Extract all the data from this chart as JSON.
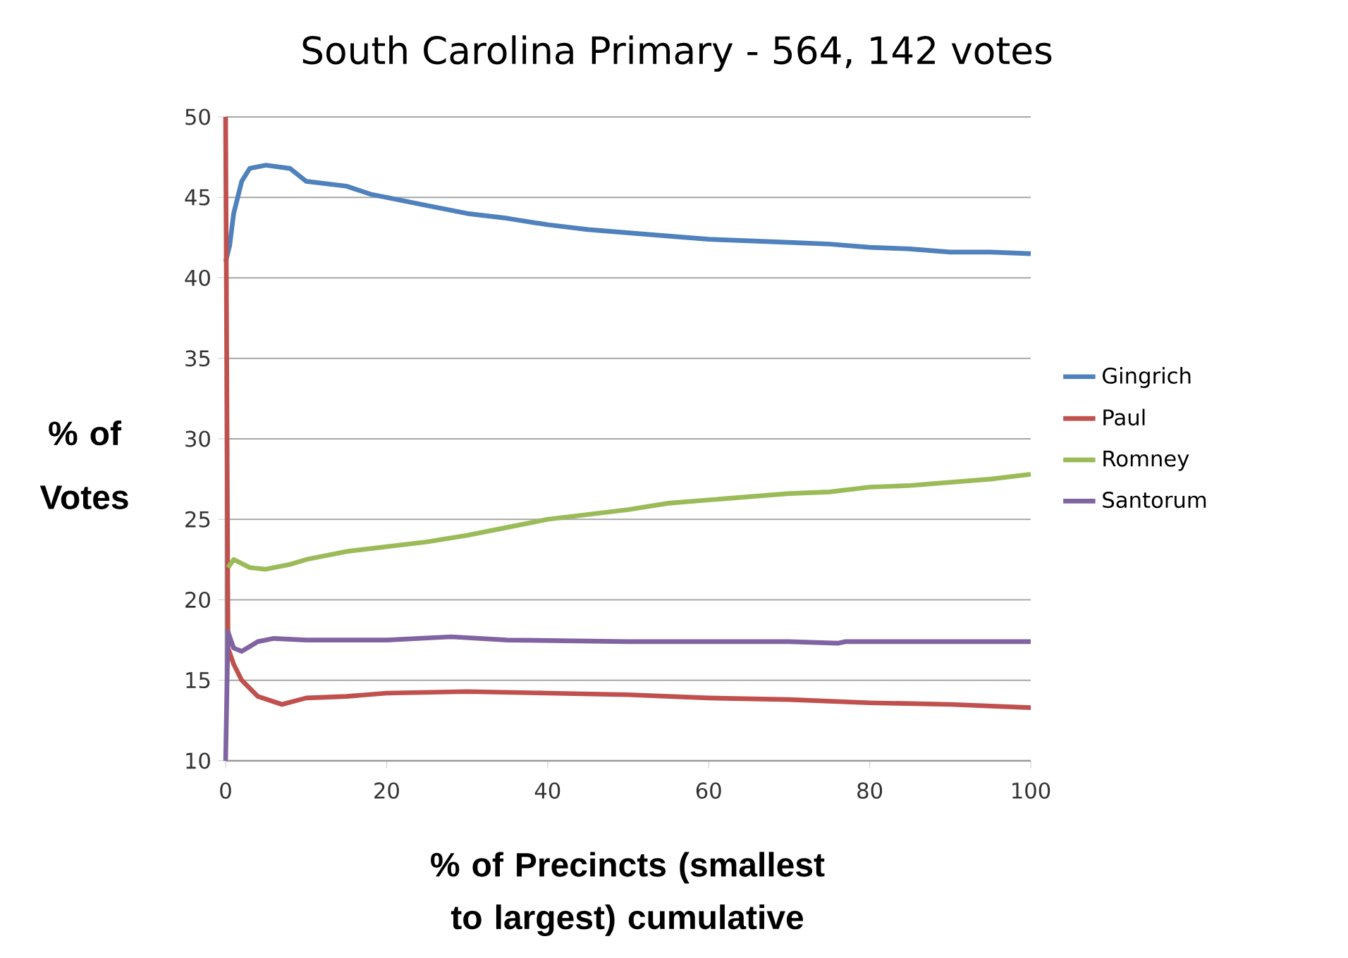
{
  "chart_data": {
    "type": "line",
    "title": "South Carolina Primary - 564, 142 votes",
    "xlabel": "% of Precincts (smallest to largest) cumulative",
    "ylabel": "% of Votes",
    "xlim": [
      0,
      100
    ],
    "ylim": [
      10,
      50
    ],
    "xticks": [
      0,
      20,
      40,
      60,
      80,
      100
    ],
    "yticks": [
      10,
      15,
      20,
      25,
      30,
      35,
      40,
      45,
      50
    ],
    "grid": "y",
    "legend": "right",
    "line_style": "solid",
    "marker": "none",
    "series": [
      {
        "name": "Gingrich",
        "color": "#4f81bd",
        "x": [
          0,
          0.5,
          1,
          2,
          3,
          5,
          8,
          10,
          15,
          18,
          20,
          25,
          30,
          35,
          40,
          45,
          50,
          55,
          60,
          65,
          70,
          75,
          80,
          85,
          90,
          95,
          100
        ],
        "values": [
          41,
          42,
          44,
          46,
          46.8,
          47,
          46.8,
          46,
          45.7,
          45.2,
          45,
          44.5,
          44,
          43.7,
          43.3,
          43,
          42.8,
          42.6,
          42.4,
          42.3,
          42.2,
          42.1,
          41.9,
          41.8,
          41.6,
          41.6,
          41.5
        ]
      },
      {
        "name": "Paul",
        "color": "#c0504d",
        "x": [
          0,
          0.3,
          1,
          2,
          4,
          7,
          10,
          15,
          20,
          30,
          40,
          50,
          60,
          70,
          80,
          90,
          100
        ],
        "values": [
          50,
          17,
          16,
          15,
          14,
          13.5,
          13.9,
          14,
          14.2,
          14.3,
          14.2,
          14.1,
          13.9,
          13.8,
          13.6,
          13.5,
          13.3
        ]
      },
      {
        "name": "Romney",
        "color": "#9bbb59",
        "x": [
          0.3,
          1,
          3,
          5,
          8,
          10,
          15,
          20,
          25,
          30,
          35,
          40,
          45,
          50,
          55,
          60,
          65,
          70,
          75,
          80,
          85,
          90,
          95,
          100
        ],
        "values": [
          22,
          22.5,
          22,
          21.9,
          22.2,
          22.5,
          23,
          23.3,
          23.6,
          24,
          24.5,
          25,
          25.3,
          25.6,
          26,
          26.2,
          26.4,
          26.6,
          26.7,
          27,
          27.1,
          27.3,
          27.5,
          27.8
        ]
      },
      {
        "name": "Santorum",
        "color": "#8064a2",
        "x": [
          0,
          0.3,
          1,
          2,
          4,
          6,
          10,
          20,
          28,
          35,
          50,
          60,
          70,
          76,
          77,
          100
        ],
        "values": [
          10,
          18,
          17,
          16.8,
          17.4,
          17.6,
          17.5,
          17.5,
          17.7,
          17.5,
          17.4,
          17.4,
          17.4,
          17.3,
          17.4,
          17.4
        ]
      }
    ]
  }
}
